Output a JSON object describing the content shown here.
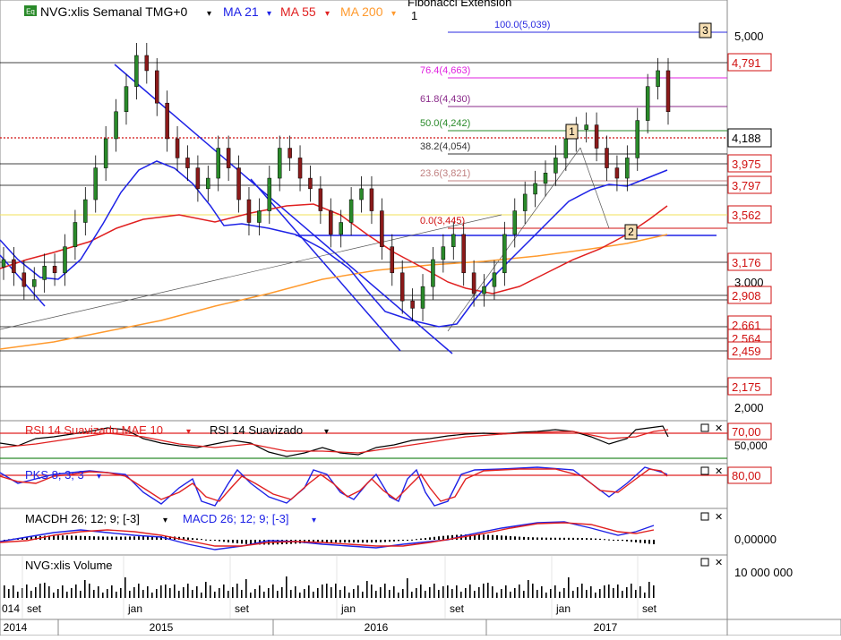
{
  "header": {
    "symbol_badge": "Eq",
    "title": "NVG:xlis Semanal TMG+0",
    "ma21": "MA 21",
    "ma55": "MA 55",
    "ma200": "MA 200",
    "fib_title": "Fibonacci Extension",
    "fib_sub": "1"
  },
  "colors": {
    "ma21": "#1e22e6",
    "ma55": "#e02020",
    "ma200": "#ff9a2e",
    "up": "#2a8a2a",
    "down": "#8b1a1a",
    "label_red": "#d01010"
  },
  "fib_levels": [
    {
      "label": "100.0(5,039)",
      "value": 5.039,
      "color": "#2a2ae0"
    },
    {
      "label": "76.4(4,663)",
      "value": 4.663,
      "color": "#e020e0"
    },
    {
      "label": "61.8(4,430)",
      "value": 4.43,
      "color": "#8a2a8a"
    },
    {
      "label": "50.0(4,242)",
      "value": 4.242,
      "color": "#2a8a2a"
    },
    {
      "label": "38.2(4,054)",
      "value": 4.054,
      "color": "#333333"
    },
    {
      "label": "23.6(3,821)",
      "value": 3.821,
      "color": "#c08080"
    },
    {
      "label": "0.0(3,445)",
      "value": 3.445,
      "color": "#d01010"
    }
  ],
  "wave_labels": [
    "1",
    "2",
    "3"
  ],
  "price_axis": {
    "plain_ticks": [
      "5,000",
      "3,000",
      "2,000"
    ],
    "boxed_levels": [
      "4,791",
      "3,975",
      "3,797",
      "3,562",
      "3,176",
      "2,908",
      "2,661",
      "2,564",
      "2,459",
      "2,175"
    ],
    "current_price": "4,188"
  },
  "rsi": {
    "label1": "RSI 14 Suavizado MAE 10",
    "label2": "RSI 14 Suavizado",
    "level": "70,00",
    "mid": "50,000"
  },
  "pks": {
    "label": "PKS 8; 3; 3",
    "level": "80,00"
  },
  "macd": {
    "label1": "MACDH 26; 12; 9; [-3]",
    "label2": "MACD 26; 12; 9; [-3]",
    "zero": "0,00000"
  },
  "volume": {
    "label": "NVG:xlis Volume",
    "tick": "10 000 000"
  },
  "time_axis": {
    "months": [
      "set",
      "jan",
      "set",
      "jan",
      "set",
      "jan",
      "set"
    ],
    "years": [
      "2014",
      "2015",
      "2016",
      "2017"
    ],
    "left_stub": "014"
  },
  "chart_data": {
    "type": "candlestick",
    "title": "NVG:xlis Semanal TMG+0",
    "y_scale": "log",
    "series_closes": [
      2.8,
      2.7,
      2.6,
      2.65,
      2.75,
      2.7,
      2.9,
      3.1,
      3.3,
      3.6,
      3.9,
      4.2,
      4.5,
      4.9,
      4.7,
      4.3,
      3.9,
      3.7,
      3.6,
      3.4,
      3.5,
      3.8,
      3.6,
      3.3,
      3.1,
      3.2,
      3.5,
      3.8,
      3.7,
      3.5,
      3.4,
      3.2,
      3.0,
      3.1,
      3.3,
      3.4,
      3.2,
      2.9,
      2.7,
      2.5,
      2.45,
      2.6,
      2.8,
      2.9,
      3.0,
      2.7,
      2.55,
      2.6,
      2.7,
      3.0,
      3.2,
      3.35,
      3.45,
      3.55,
      3.7,
      3.9,
      4.0,
      4.05,
      3.8,
      3.6,
      3.5,
      3.7,
      4.1,
      4.5,
      4.7,
      4.2
    ]
  }
}
